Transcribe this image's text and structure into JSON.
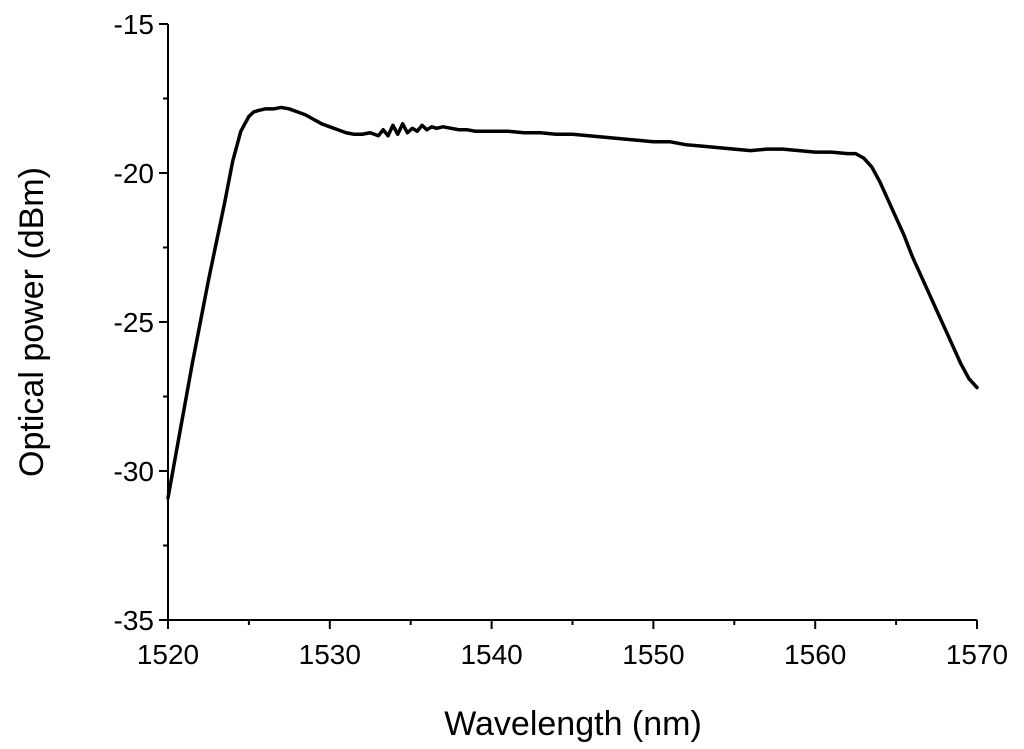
{
  "chart_data": {
    "type": "line",
    "title": "",
    "xlabel": "Wavelength (nm)",
    "ylabel": "Optical power (dBm)",
    "xlim": [
      1520,
      1570
    ],
    "ylim": [
      -35,
      -15
    ],
    "xticks": [
      1520,
      1530,
      1540,
      1550,
      1560,
      1570
    ],
    "yticks": [
      -15,
      -20,
      -25,
      -30,
      -35
    ],
    "xtick_labels": [
      "1520",
      "1530",
      "1540",
      "1550",
      "1560",
      "1570"
    ],
    "ytick_labels": [
      "-15",
      "-20",
      "-25",
      "-30",
      "-35"
    ],
    "grid": false,
    "legend": "none",
    "line_color": "#000000",
    "series": [
      {
        "x": [
          1520.0,
          1520.5,
          1521.0,
          1521.5,
          1522.0,
          1522.5,
          1523.0,
          1523.5,
          1524.0,
          1524.5,
          1525.0,
          1525.3,
          1525.6,
          1526.0,
          1526.5,
          1527.0,
          1527.5,
          1528.0,
          1528.5,
          1529.0,
          1529.5,
          1530.0,
          1530.5,
          1531.0,
          1531.5,
          1532.0,
          1532.5,
          1533.0,
          1533.3,
          1533.6,
          1533.9,
          1534.2,
          1534.5,
          1534.8,
          1535.1,
          1535.4,
          1535.7,
          1536.0,
          1536.3,
          1536.6,
          1537.0,
          1537.5,
          1538.0,
          1538.5,
          1539.0,
          1539.5,
          1540.0,
          1541.0,
          1542.0,
          1543.0,
          1544.0,
          1545.0,
          1546.0,
          1547.0,
          1548.0,
          1549.0,
          1550.0,
          1551.0,
          1552.0,
          1553.0,
          1554.0,
          1555.0,
          1556.0,
          1557.0,
          1558.0,
          1559.0,
          1560.0,
          1561.0,
          1562.0,
          1562.5,
          1563.0,
          1563.5,
          1564.0,
          1564.5,
          1565.0,
          1565.5,
          1566.0,
          1566.5,
          1567.0,
          1567.5,
          1568.0,
          1568.5,
          1569.0,
          1569.5,
          1570.0
        ],
        "y": [
          -30.9,
          -29.4,
          -27.9,
          -26.4,
          -25.0,
          -23.6,
          -22.3,
          -21.0,
          -19.6,
          -18.6,
          -18.1,
          -17.95,
          -17.9,
          -17.85,
          -17.85,
          -17.8,
          -17.85,
          -17.95,
          -18.05,
          -18.2,
          -18.35,
          -18.45,
          -18.55,
          -18.65,
          -18.7,
          -18.7,
          -18.65,
          -18.75,
          -18.55,
          -18.75,
          -18.4,
          -18.7,
          -18.35,
          -18.65,
          -18.5,
          -18.6,
          -18.4,
          -18.55,
          -18.45,
          -18.5,
          -18.45,
          -18.5,
          -18.55,
          -18.55,
          -18.6,
          -18.6,
          -18.6,
          -18.6,
          -18.65,
          -18.65,
          -18.7,
          -18.7,
          -18.75,
          -18.8,
          -18.85,
          -18.9,
          -18.95,
          -18.95,
          -19.05,
          -19.1,
          -19.15,
          -19.2,
          -19.25,
          -19.2,
          -19.2,
          -19.25,
          -19.3,
          -19.3,
          -19.35,
          -19.35,
          -19.5,
          -19.8,
          -20.3,
          -20.9,
          -21.5,
          -22.1,
          -22.8,
          -23.4,
          -24.0,
          -24.6,
          -25.2,
          -25.8,
          -26.4,
          -26.9,
          -27.2
        ]
      }
    ]
  }
}
